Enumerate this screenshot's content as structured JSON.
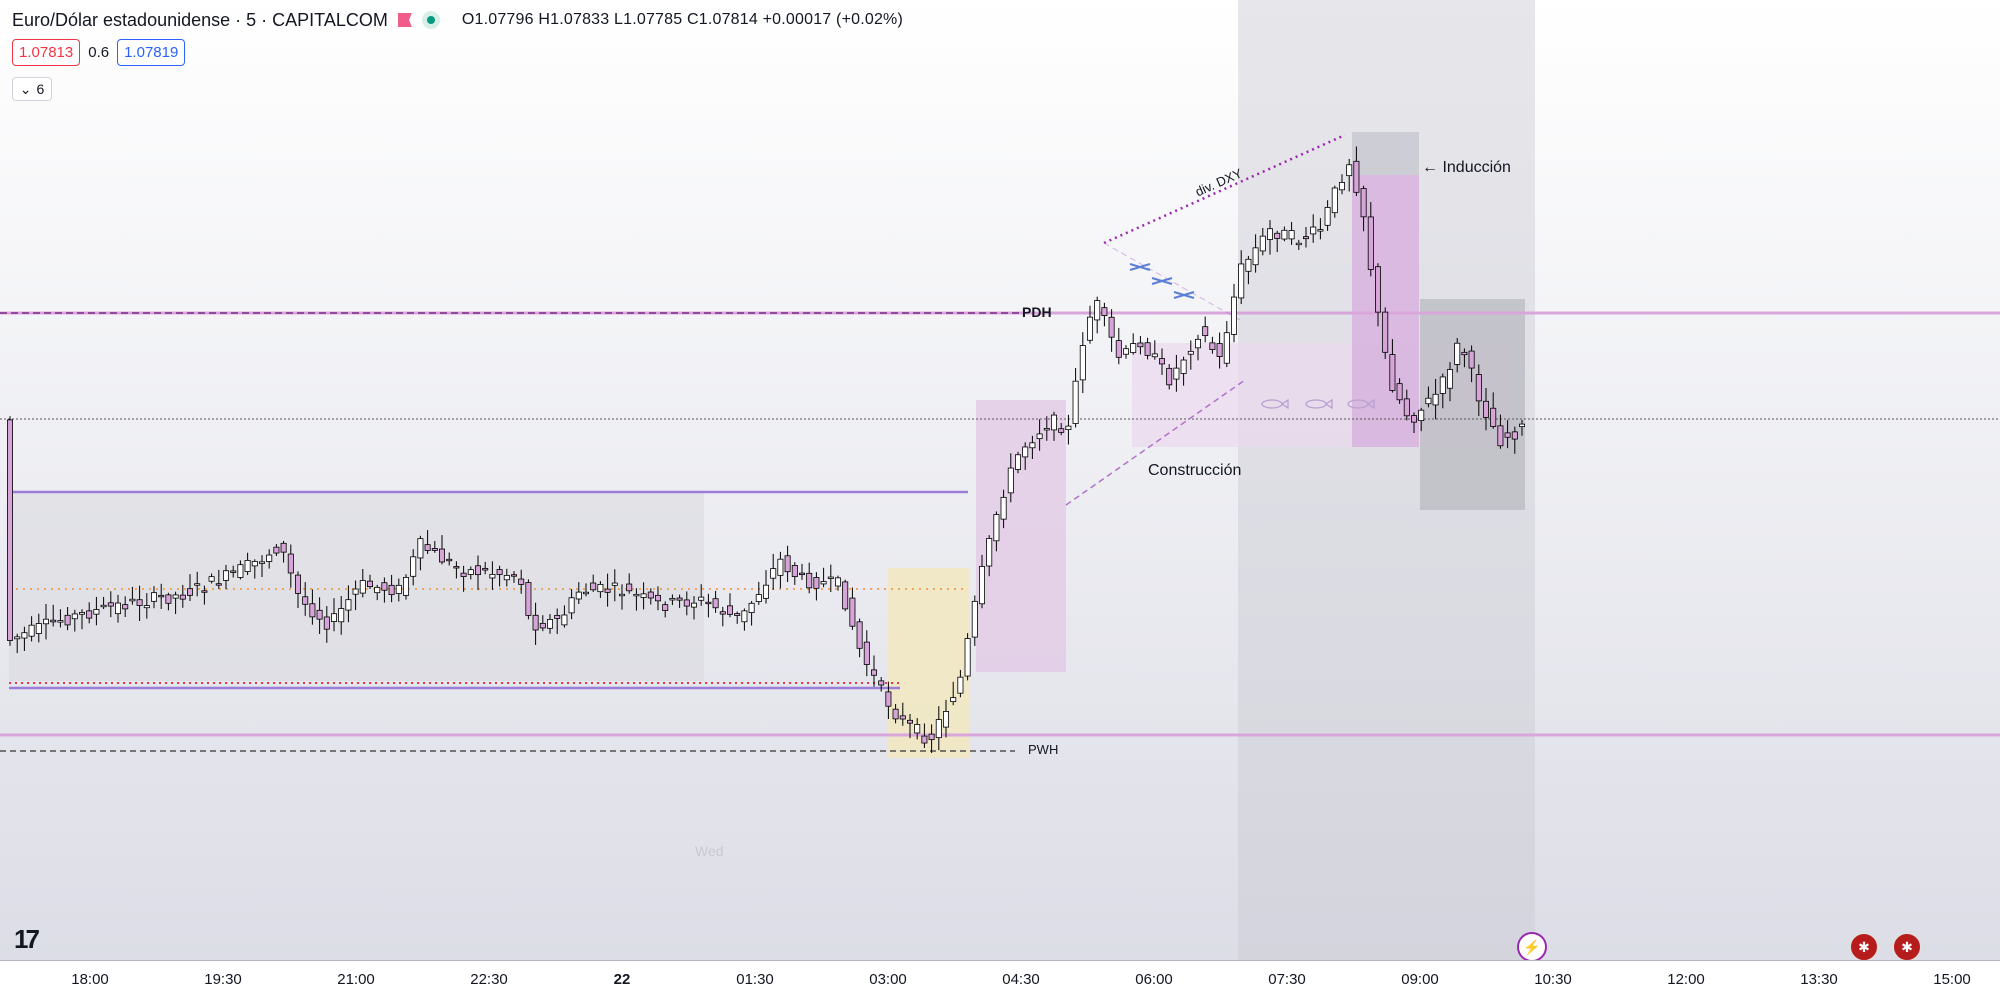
{
  "header": {
    "symbol_title": "Euro/Dólar estadounidense · 5 · CAPITALCOM",
    "ohlc": "O1.07796 H1.07833 L1.07785 C1.07814 +0.00017 (+0.02%)",
    "sell_price": "1.07813",
    "spread": "0.6",
    "buy_price": "1.07819",
    "indicators_toggle": "6"
  },
  "annotations": {
    "pdh": "PDH",
    "pwh": "PWH",
    "induccion": "← Inducción",
    "construccion": "Construcción",
    "div_dxy": "div. DXY",
    "session_label": "Wed"
  },
  "time_axis": [
    {
      "label": "18:00",
      "bold": false
    },
    {
      "label": "19:30",
      "bold": false
    },
    {
      "label": "21:00",
      "bold": false
    },
    {
      "label": "22:30",
      "bold": false
    },
    {
      "label": "22",
      "bold": true
    },
    {
      "label": "01:30",
      "bold": false
    },
    {
      "label": "03:00",
      "bold": false
    },
    {
      "label": "04:30",
      "bold": false
    },
    {
      "label": "06:00",
      "bold": false
    },
    {
      "label": "07:30",
      "bold": false
    },
    {
      "label": "09:00",
      "bold": false
    },
    {
      "label": "10:30",
      "bold": false
    },
    {
      "label": "12:00",
      "bold": false
    },
    {
      "label": "13:30",
      "bold": false
    },
    {
      "label": "15:00",
      "bold": false
    }
  ],
  "colors": {
    "bull_body": "#ffffff",
    "bear_body": "#d6a4d8",
    "wick": "#000000",
    "pink_line": "#d9a6dc",
    "purple_line": "#9b7fd6",
    "orange_dots": "#f0a65a",
    "red_dots": "#f23645"
  },
  "icons": {
    "logo": "tradingview-logo-icon",
    "event_bolt": "lightning-bolt-icon",
    "event_flag": "us-flag-icon"
  },
  "chart_data": {
    "type": "candlestick",
    "symbol": "Euro/Dólar estadounidense",
    "interval": "5",
    "last_ohlc": {
      "open": 1.07796,
      "high": 1.07833,
      "low": 1.07785,
      "close": 1.07814,
      "change": 0.00017,
      "change_pct": 0.02
    },
    "x_ticks": [
      "18:00",
      "19:30",
      "21:00",
      "22:30",
      "22",
      "01:30",
      "03:00",
      "04:30",
      "06:00",
      "07:30",
      "09:00",
      "10:30",
      "12:00",
      "13:30",
      "15:00"
    ]
  }
}
